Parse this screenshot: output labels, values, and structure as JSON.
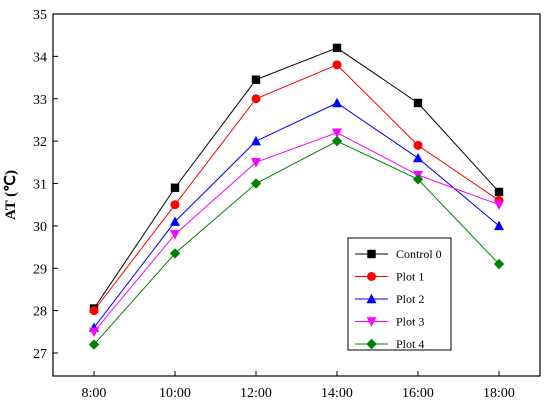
{
  "chart_data": {
    "type": "line",
    "title": "",
    "xlabel": "",
    "ylabel": "AT (℃)",
    "categories": [
      "8:00",
      "10:00",
      "12:00",
      "14:00",
      "16:00",
      "18:00"
    ],
    "ylim": [
      27,
      35
    ],
    "yticks": [
      27,
      28,
      29,
      30,
      31,
      32,
      33,
      34,
      35
    ],
    "grid": false,
    "legend_position": "bottom-right",
    "series": [
      {
        "name": "Control 0",
        "color": "#000000",
        "marker": "square",
        "values": [
          28.05,
          30.9,
          33.45,
          34.2,
          32.9,
          30.8
        ]
      },
      {
        "name": "Plot 1",
        "color": "#ff0000",
        "marker": "circle",
        "values": [
          28.0,
          30.5,
          33.0,
          33.8,
          31.9,
          30.6
        ]
      },
      {
        "name": "Plot 2",
        "color": "#0000ff",
        "marker": "triangle-up",
        "values": [
          27.6,
          30.1,
          32.0,
          32.9,
          31.6,
          30.0
        ]
      },
      {
        "name": "Plot 3",
        "color": "#ff00ff",
        "marker": "triangle-down",
        "values": [
          27.5,
          29.8,
          31.5,
          32.2,
          31.2,
          30.5
        ]
      },
      {
        "name": "Plot 4",
        "color": "#008000",
        "marker": "diamond",
        "values": [
          27.2,
          29.35,
          31.0,
          32.0,
          31.1,
          29.1
        ]
      }
    ]
  }
}
